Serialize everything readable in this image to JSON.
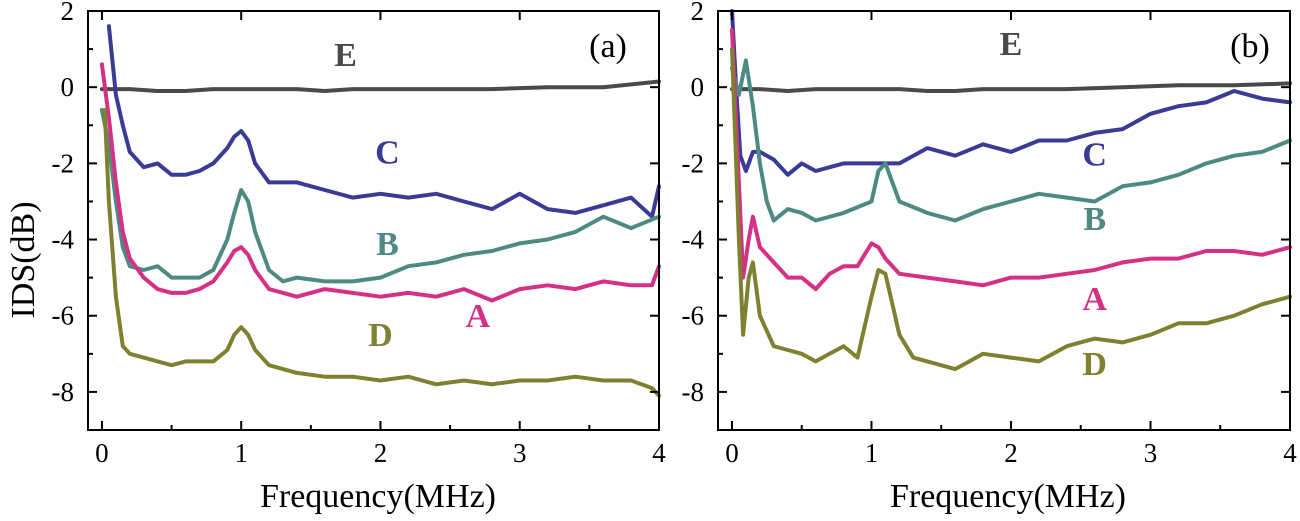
{
  "chart_data": [
    {
      "type": "line",
      "panel_label": "(a)",
      "xlabel": "Frequency(MHz)",
      "ylabel": "IDS(dB)",
      "xlim": [
        -0.1,
        4
      ],
      "ylim": [
        -9,
        2
      ],
      "xticks": [
        "0",
        "1",
        "2",
        "3",
        "4"
      ],
      "yticks": [
        "2",
        "0",
        "-2",
        "-4",
        "-6",
        "-8"
      ],
      "grid": false,
      "series": [
        {
          "name": "E",
          "color": "#4a4a4a",
          "x": [
            0,
            0.2,
            0.4,
            0.6,
            0.8,
            1.0,
            1.2,
            1.4,
            1.6,
            1.8,
            2.0,
            2.4,
            2.8,
            3.2,
            3.6,
            4.0
          ],
          "y": [
            -0.05,
            -0.05,
            -0.1,
            -0.1,
            -0.05,
            -0.05,
            -0.05,
            -0.05,
            -0.1,
            -0.05,
            -0.05,
            -0.05,
            -0.05,
            0.0,
            0.0,
            0.15
          ]
        },
        {
          "name": "C",
          "color": "#3a3b94",
          "x": [
            0.05,
            0.1,
            0.15,
            0.2,
            0.3,
            0.4,
            0.5,
            0.6,
            0.7,
            0.8,
            0.9,
            0.95,
            1.0,
            1.05,
            1.1,
            1.2,
            1.4,
            1.6,
            1.8,
            2.0,
            2.2,
            2.4,
            2.6,
            2.8,
            3.0,
            3.2,
            3.4,
            3.6,
            3.8,
            3.95,
            4.0
          ],
          "y": [
            1.6,
            -0.2,
            -1.0,
            -1.7,
            -2.1,
            -2.0,
            -2.3,
            -2.3,
            -2.2,
            -2.0,
            -1.6,
            -1.3,
            -1.15,
            -1.4,
            -2.0,
            -2.5,
            -2.5,
            -2.7,
            -2.9,
            -2.8,
            -2.9,
            -2.8,
            -3.0,
            -3.2,
            -2.8,
            -3.2,
            -3.3,
            -3.1,
            -2.9,
            -3.4,
            -2.6
          ]
        },
        {
          "name": "B",
          "color": "#4e8a84",
          "x": [
            0.0,
            0.05,
            0.1,
            0.15,
            0.2,
            0.3,
            0.4,
            0.5,
            0.6,
            0.7,
            0.8,
            0.9,
            0.95,
            1.0,
            1.05,
            1.1,
            1.2,
            1.3,
            1.4,
            1.6,
            1.8,
            2.0,
            2.2,
            2.4,
            2.6,
            2.8,
            3.0,
            3.2,
            3.4,
            3.6,
            3.8,
            4.0
          ],
          "y": [
            -0.6,
            -1.5,
            -3.0,
            -4.2,
            -4.7,
            -4.8,
            -4.7,
            -5.0,
            -5.0,
            -5.0,
            -4.8,
            -4.0,
            -3.3,
            -2.7,
            -3.0,
            -3.8,
            -4.8,
            -5.1,
            -5.0,
            -5.1,
            -5.1,
            -5.0,
            -4.7,
            -4.6,
            -4.4,
            -4.3,
            -4.1,
            -4.0,
            -3.8,
            -3.4,
            -3.7,
            -3.4
          ]
        },
        {
          "name": "A",
          "color": "#d43086",
          "x": [
            0.0,
            0.05,
            0.1,
            0.15,
            0.2,
            0.3,
            0.4,
            0.5,
            0.6,
            0.7,
            0.8,
            0.9,
            0.95,
            1.0,
            1.05,
            1.1,
            1.2,
            1.4,
            1.6,
            1.8,
            2.0,
            2.2,
            2.4,
            2.6,
            2.8,
            3.0,
            3.2,
            3.4,
            3.6,
            3.8,
            3.95,
            4.0
          ],
          "y": [
            0.6,
            -0.8,
            -2.5,
            -3.8,
            -4.5,
            -5.0,
            -5.3,
            -5.4,
            -5.4,
            -5.3,
            -5.1,
            -4.6,
            -4.3,
            -4.2,
            -4.4,
            -4.8,
            -5.3,
            -5.5,
            -5.3,
            -5.4,
            -5.5,
            -5.4,
            -5.5,
            -5.3,
            -5.6,
            -5.3,
            -5.2,
            -5.3,
            -5.1,
            -5.2,
            -5.2,
            -4.7
          ]
        },
        {
          "name": "D",
          "color": "#7f8130",
          "x": [
            0.02,
            0.05,
            0.1,
            0.15,
            0.2,
            0.3,
            0.4,
            0.5,
            0.6,
            0.7,
            0.8,
            0.9,
            0.95,
            1.0,
            1.05,
            1.1,
            1.2,
            1.4,
            1.6,
            1.8,
            2.0,
            2.2,
            2.4,
            2.6,
            2.8,
            3.0,
            3.2,
            3.4,
            3.6,
            3.8,
            3.95,
            4.0
          ],
          "y": [
            -0.6,
            -3.0,
            -5.5,
            -6.8,
            -7.0,
            -7.1,
            -7.2,
            -7.3,
            -7.2,
            -7.2,
            -7.2,
            -6.9,
            -6.5,
            -6.3,
            -6.5,
            -6.9,
            -7.3,
            -7.5,
            -7.6,
            -7.6,
            -7.7,
            -7.6,
            -7.8,
            -7.7,
            -7.8,
            -7.7,
            -7.7,
            -7.6,
            -7.7,
            -7.7,
            -7.9,
            -8.1
          ]
        }
      ],
      "curve_labels": [
        {
          "text": "E",
          "x": 1.75,
          "y": 0.55
        },
        {
          "text": "C",
          "x": 2.05,
          "y": -2.0
        },
        {
          "text": "B",
          "x": 2.05,
          "y": -4.4
        },
        {
          "text": "A",
          "x": 2.7,
          "y": -6.3
        },
        {
          "text": "D",
          "x": 2.0,
          "y": -6.8
        }
      ]
    },
    {
      "type": "line",
      "panel_label": "(b)",
      "xlabel": "Frequency(MHz)",
      "xlim": [
        -0.1,
        4
      ],
      "ylim": [
        -9,
        2
      ],
      "xticks": [
        "0",
        "1",
        "2",
        "3",
        "4"
      ],
      "yticks": [
        "2",
        "0",
        "-2",
        "-4",
        "-6",
        "-8"
      ],
      "grid": false,
      "series": [
        {
          "name": "E",
          "color": "#4a4a4a",
          "x": [
            0,
            0.2,
            0.4,
            0.6,
            0.8,
            1.0,
            1.2,
            1.4,
            1.6,
            1.8,
            2.0,
            2.4,
            2.8,
            3.2,
            3.6,
            4.0
          ],
          "y": [
            -0.05,
            -0.05,
            -0.1,
            -0.05,
            -0.05,
            -0.05,
            -0.05,
            -0.1,
            -0.1,
            -0.05,
            -0.05,
            -0.05,
            0.0,
            0.05,
            0.05,
            0.1
          ]
        },
        {
          "name": "C",
          "color": "#3a3b94",
          "x": [
            0.0,
            0.03,
            0.06,
            0.1,
            0.15,
            0.2,
            0.3,
            0.4,
            0.5,
            0.6,
            0.8,
            1.0,
            1.2,
            1.4,
            1.6,
            1.8,
            2.0,
            2.2,
            2.4,
            2.6,
            2.8,
            3.0,
            3.2,
            3.4,
            3.6,
            3.8,
            4.0
          ],
          "y": [
            2.0,
            0.0,
            -1.8,
            -2.2,
            -1.7,
            -1.7,
            -1.9,
            -2.3,
            -2.0,
            -2.2,
            -2.0,
            -2.0,
            -2.0,
            -1.6,
            -1.8,
            -1.5,
            -1.7,
            -1.4,
            -1.4,
            -1.2,
            -1.1,
            -0.7,
            -0.5,
            -0.4,
            -0.1,
            -0.3,
            -0.4
          ]
        },
        {
          "name": "B",
          "color": "#4e8a84",
          "x": [
            0.0,
            0.05,
            0.1,
            0.15,
            0.2,
            0.25,
            0.3,
            0.4,
            0.5,
            0.6,
            0.8,
            1.0,
            1.05,
            1.1,
            1.2,
            1.4,
            1.6,
            1.8,
            2.0,
            2.2,
            2.4,
            2.6,
            2.8,
            3.0,
            3.2,
            3.4,
            3.6,
            3.8,
            4.0
          ],
          "y": [
            0.5,
            -0.2,
            0.7,
            -0.5,
            -2.0,
            -3.0,
            -3.5,
            -3.2,
            -3.3,
            -3.5,
            -3.3,
            -3.0,
            -2.2,
            -2.0,
            -3.0,
            -3.3,
            -3.5,
            -3.2,
            -3.0,
            -2.8,
            -2.9,
            -3.0,
            -2.6,
            -2.5,
            -2.3,
            -2.0,
            -1.8,
            -1.7,
            -1.4
          ]
        },
        {
          "name": "A",
          "color": "#d43086",
          "x": [
            0.0,
            0.05,
            0.08,
            0.12,
            0.15,
            0.2,
            0.3,
            0.4,
            0.5,
            0.6,
            0.7,
            0.8,
            0.9,
            1.0,
            1.05,
            1.1,
            1.2,
            1.4,
            1.6,
            1.8,
            2.0,
            2.2,
            2.4,
            2.6,
            2.8,
            3.0,
            3.2,
            3.4,
            3.6,
            3.8,
            4.0
          ],
          "y": [
            1.5,
            -2.5,
            -5.0,
            -4.0,
            -3.4,
            -4.2,
            -4.6,
            -5.0,
            -5.0,
            -5.3,
            -4.9,
            -4.7,
            -4.7,
            -4.1,
            -4.2,
            -4.5,
            -4.9,
            -5.0,
            -5.1,
            -5.2,
            -5.0,
            -5.0,
            -4.9,
            -4.8,
            -4.6,
            -4.5,
            -4.5,
            -4.3,
            -4.3,
            -4.4,
            -4.2
          ]
        },
        {
          "name": "D",
          "color": "#7f8130",
          "x": [
            0.0,
            0.05,
            0.08,
            0.12,
            0.15,
            0.2,
            0.3,
            0.4,
            0.5,
            0.6,
            0.7,
            0.8,
            0.9,
            1.0,
            1.05,
            1.1,
            1.2,
            1.3,
            1.4,
            1.6,
            1.8,
            2.0,
            2.2,
            2.4,
            2.6,
            2.8,
            3.0,
            3.2,
            3.4,
            3.6,
            3.8,
            4.0
          ],
          "y": [
            1.0,
            -4.0,
            -6.5,
            -5.0,
            -4.6,
            -6.0,
            -6.8,
            -6.9,
            -7.0,
            -7.2,
            -7.0,
            -6.8,
            -7.1,
            -5.5,
            -4.8,
            -4.9,
            -6.5,
            -7.1,
            -7.2,
            -7.4,
            -7.0,
            -7.1,
            -7.2,
            -6.8,
            -6.6,
            -6.7,
            -6.5,
            -6.2,
            -6.2,
            -6.0,
            -5.7,
            -5.5
          ]
        }
      ],
      "curve_labels": [
        {
          "text": "E",
          "x": 2.0,
          "y": 0.85
        },
        {
          "text": "C",
          "x": 2.6,
          "y": -2.05
        },
        {
          "text": "B",
          "x": 2.6,
          "y": -3.75
        },
        {
          "text": "A",
          "x": 2.6,
          "y": -5.85
        },
        {
          "text": "D",
          "x": 2.6,
          "y": -7.55
        }
      ]
    }
  ]
}
